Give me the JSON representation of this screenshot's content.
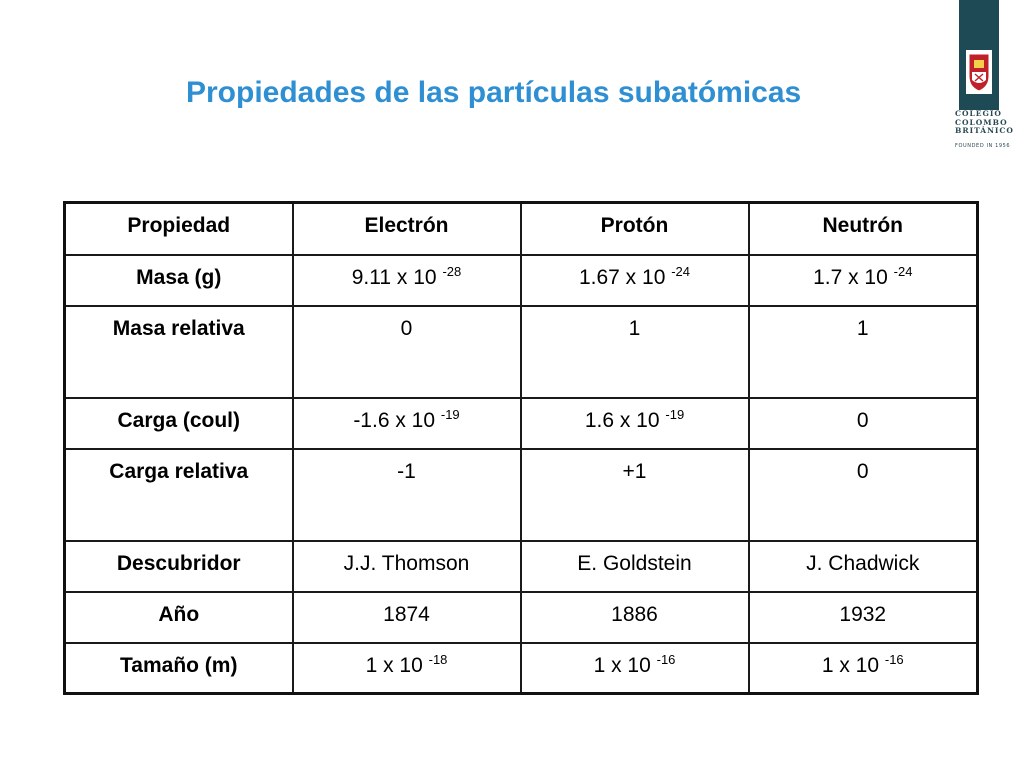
{
  "title": "Propiedades de las partículas subatómicas",
  "logo": {
    "line1": "COLEGIO",
    "line2": "COLOMBO",
    "line3": "BRITÁNICO",
    "founded": "FOUNDED IN 1956"
  },
  "table": {
    "headers": [
      "Propiedad",
      "Electrón",
      "Protón",
      "Neutrón"
    ],
    "rows": [
      {
        "label": "Masa (g)",
        "cells": [
          {
            "base": "9.11 x 10",
            "exp": "-28"
          },
          {
            "base": "1.67 x 10",
            "exp": "-24"
          },
          {
            "base": "1.7 x 10",
            "exp": "-24"
          }
        ]
      },
      {
        "label": "Masa relativa",
        "cells": [
          {
            "base": "0",
            "exp": ""
          },
          {
            "base": "1",
            "exp": ""
          },
          {
            "base": "1",
            "exp": ""
          }
        ]
      },
      {
        "label": "Carga (coul)",
        "cells": [
          {
            "base": "-1.6 x 10",
            "exp": "-19"
          },
          {
            "base": "1.6 x 10",
            "exp": "-19"
          },
          {
            "base": "0",
            "exp": ""
          }
        ]
      },
      {
        "label": "Carga relativa",
        "cells": [
          {
            "base": "-1",
            "exp": ""
          },
          {
            "base": "+1",
            "exp": ""
          },
          {
            "base": "0",
            "exp": ""
          }
        ]
      },
      {
        "label": "Descubridor",
        "cells": [
          {
            "base": "J.J. Thomson",
            "exp": ""
          },
          {
            "base": "E. Goldstein",
            "exp": ""
          },
          {
            "base": "J. Chadwick",
            "exp": ""
          }
        ]
      },
      {
        "label": "Año",
        "cells": [
          {
            "base": "1874",
            "exp": ""
          },
          {
            "base": "1886",
            "exp": ""
          },
          {
            "base": "1932",
            "exp": ""
          }
        ]
      },
      {
        "label": "Tamaño (m)",
        "cells": [
          {
            "base": "1 x 10",
            "exp": "-18"
          },
          {
            "base": "1 x 10",
            "exp": "-16"
          },
          {
            "base": "1 x 10",
            "exp": "-16"
          }
        ]
      }
    ]
  },
  "colors": {
    "title": "#2e8fd3",
    "logo_bar": "#1d4a55",
    "shield_red": "#c0202a",
    "border": "#1a1a1a"
  }
}
